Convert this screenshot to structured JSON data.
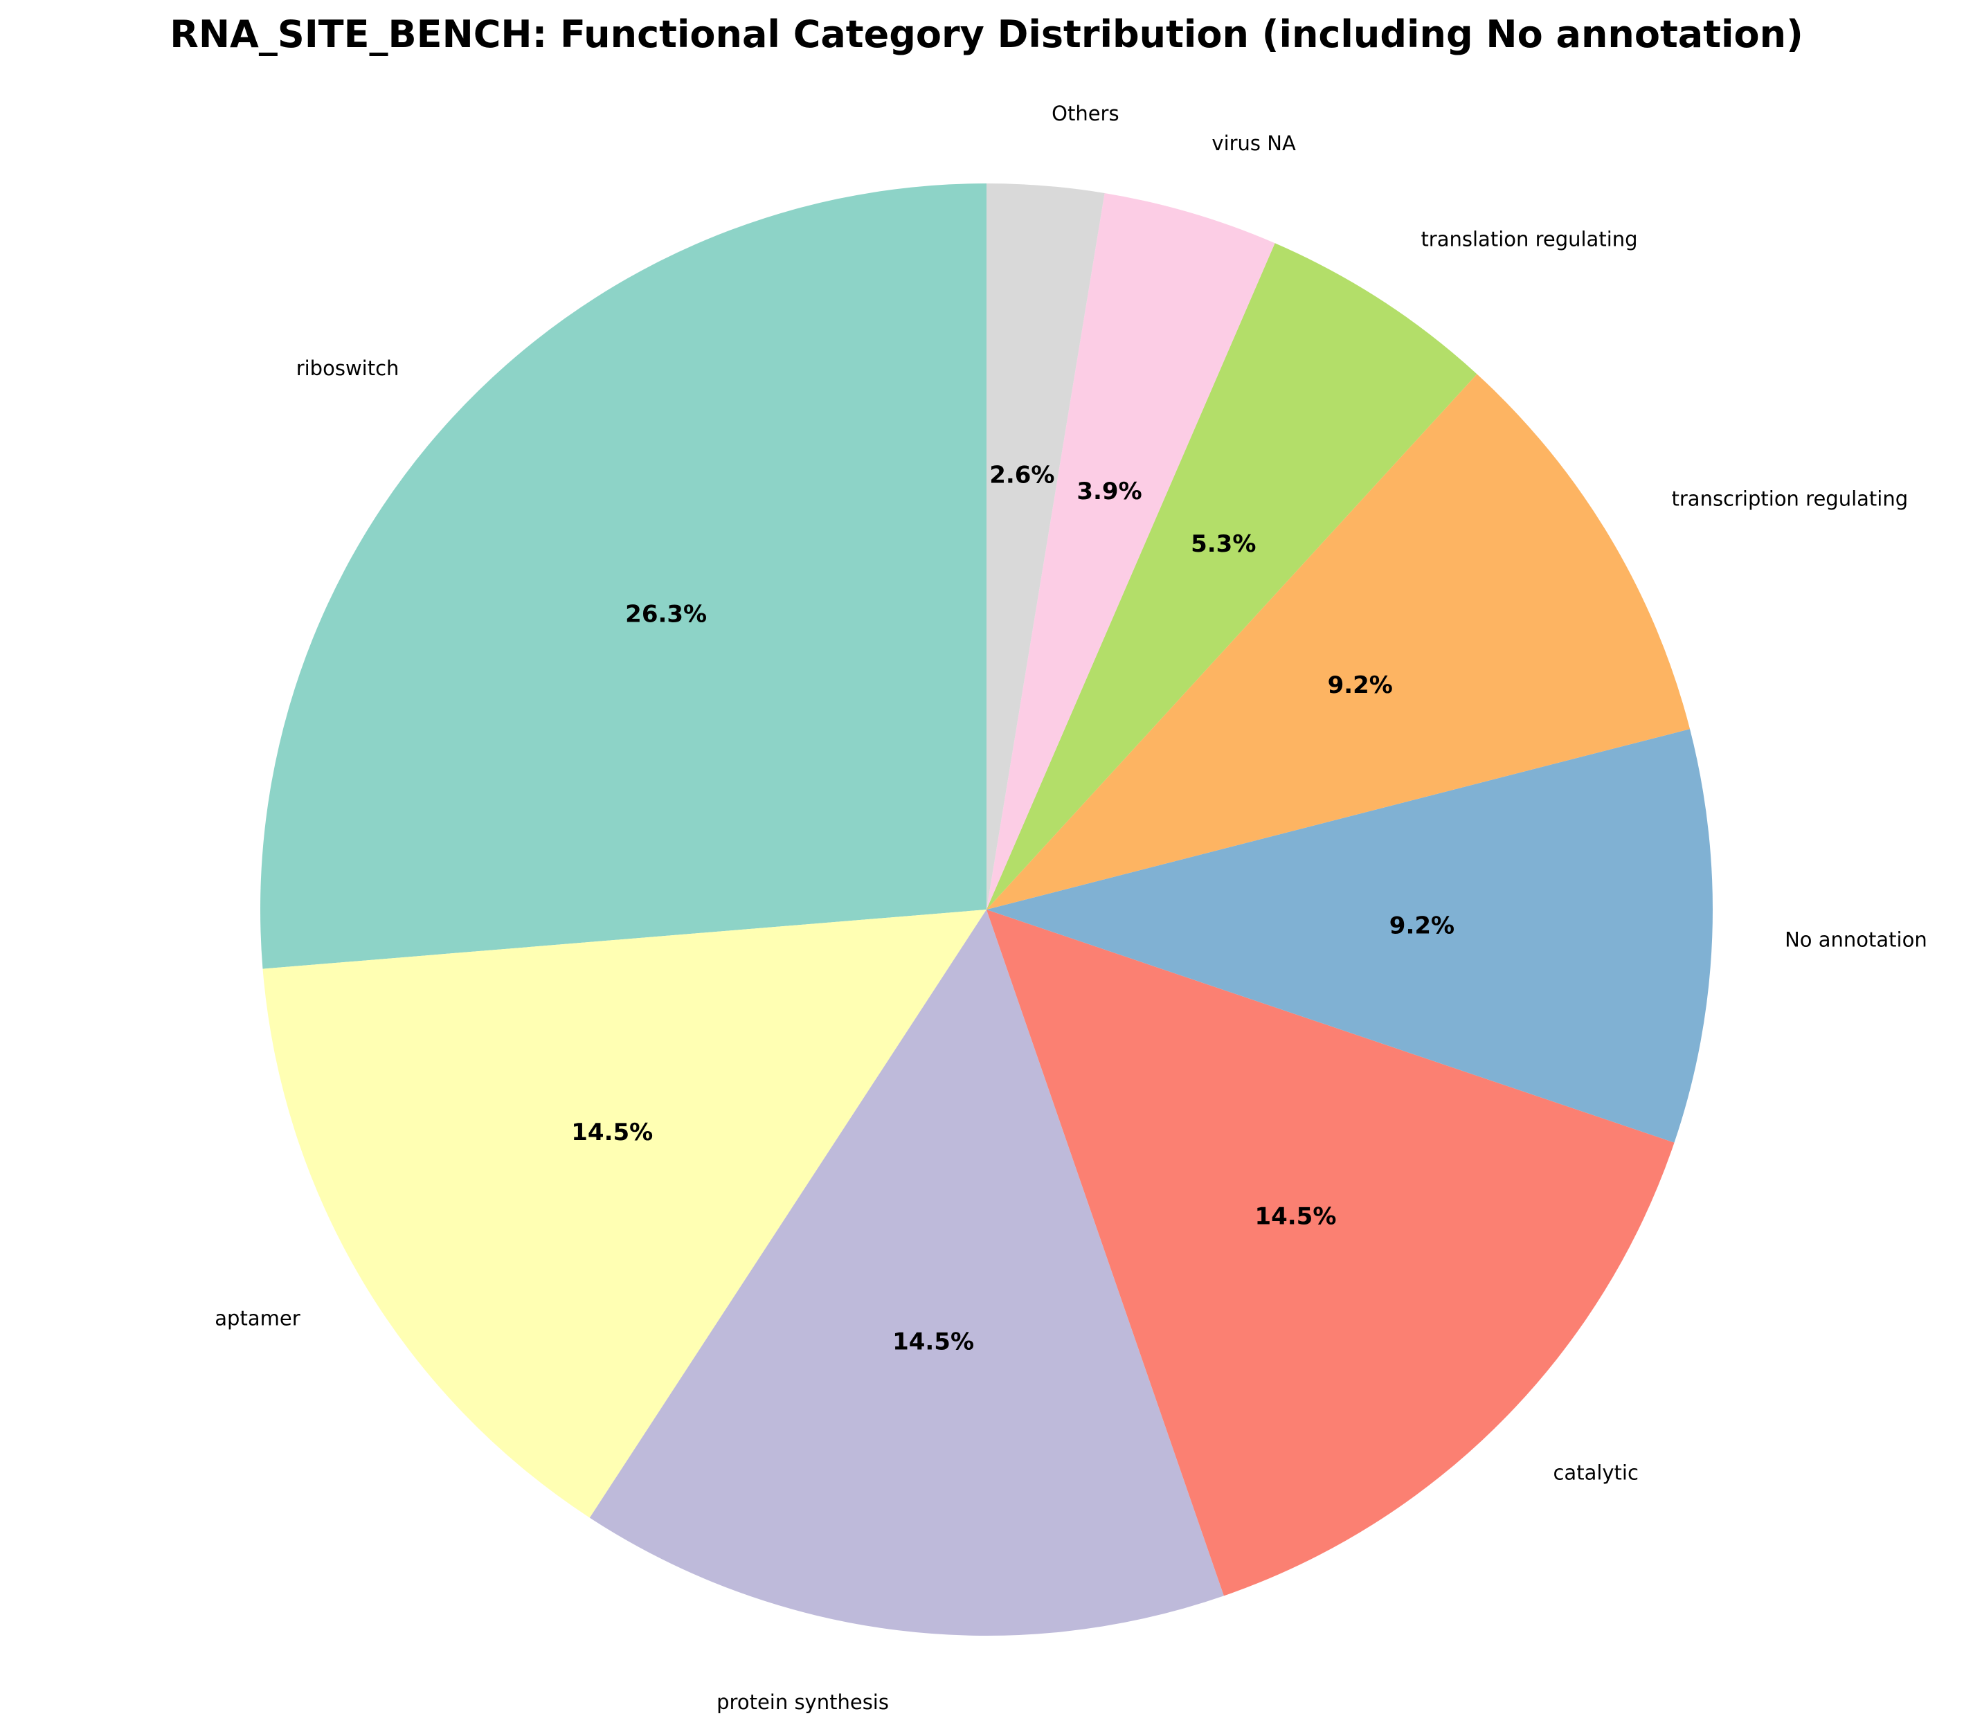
{
  "chart_data": {
    "type": "pie",
    "title": "RNA_SITE_BENCH: Functional Category Distribution (including No annotation)",
    "start_angle_deg": 90,
    "direction": "counterclockwise",
    "slices": [
      {
        "label": "riboswitch",
        "value": 26.3,
        "pct_label": "26.3%",
        "color": "#8dd3c7"
      },
      {
        "label": "aptamer",
        "value": 14.5,
        "pct_label": "14.5%",
        "color": "#ffffb3"
      },
      {
        "label": "protein synthesis",
        "value": 14.5,
        "pct_label": "14.5%",
        "color": "#bebada"
      },
      {
        "label": "catalytic",
        "value": 14.5,
        "pct_label": "14.5%",
        "color": "#fb8072"
      },
      {
        "label": "No annotation",
        "value": 9.2,
        "pct_label": "9.2%",
        "color": "#80b1d3"
      },
      {
        "label": "transcription regulating",
        "value": 9.2,
        "pct_label": "9.2%",
        "color": "#fdb462"
      },
      {
        "label": "translation regulating",
        "value": 5.3,
        "pct_label": "5.3%",
        "color": "#b3de69"
      },
      {
        "label": "virus NA",
        "value": 3.9,
        "pct_label": "3.9%",
        "color": "#fccde5"
      },
      {
        "label": "Others",
        "value": 2.6,
        "pct_label": "2.6%",
        "color": "#d9d9d9"
      }
    ]
  }
}
